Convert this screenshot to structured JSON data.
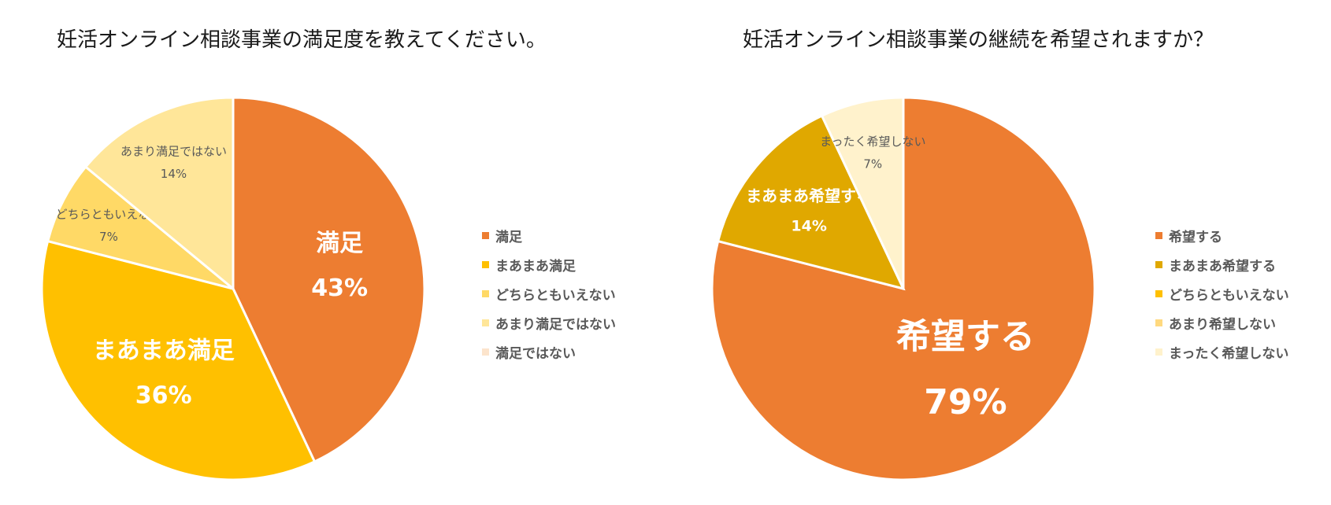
{
  "chart_data": [
    {
      "type": "pie",
      "title": "妊活オンライン相談事業の満足度を教えてください。",
      "categories": [
        "満足",
        "まあまあ満足",
        "どちらともいえない",
        "あまり満足ではない",
        "満足ではない"
      ],
      "values": [
        43,
        36,
        7,
        14,
        0
      ],
      "value_labels": [
        "43%",
        "36%",
        "7%",
        "14%",
        ""
      ],
      "colors": [
        "#ED7D31",
        "#FFC000",
        "#FFD966",
        "#FFE699",
        "#FCE4CC"
      ],
      "legend_position": "right"
    },
    {
      "type": "pie",
      "title": "妊活オンライン相談事業の継続を希望されますか？",
      "categories": [
        "希望する",
        "まあまあ希望する",
        "どちらともいえない",
        "あまり希望しない",
        "まったく希望しない"
      ],
      "values": [
        79,
        14,
        0,
        0,
        7
      ],
      "value_labels": [
        "79%",
        "14%",
        "",
        "",
        "7%"
      ],
      "colors": [
        "#ED7D31",
        "#E0A800",
        "#FFC000",
        "#FFD97F",
        "#FFF2CC"
      ],
      "legend_position": "right"
    }
  ]
}
